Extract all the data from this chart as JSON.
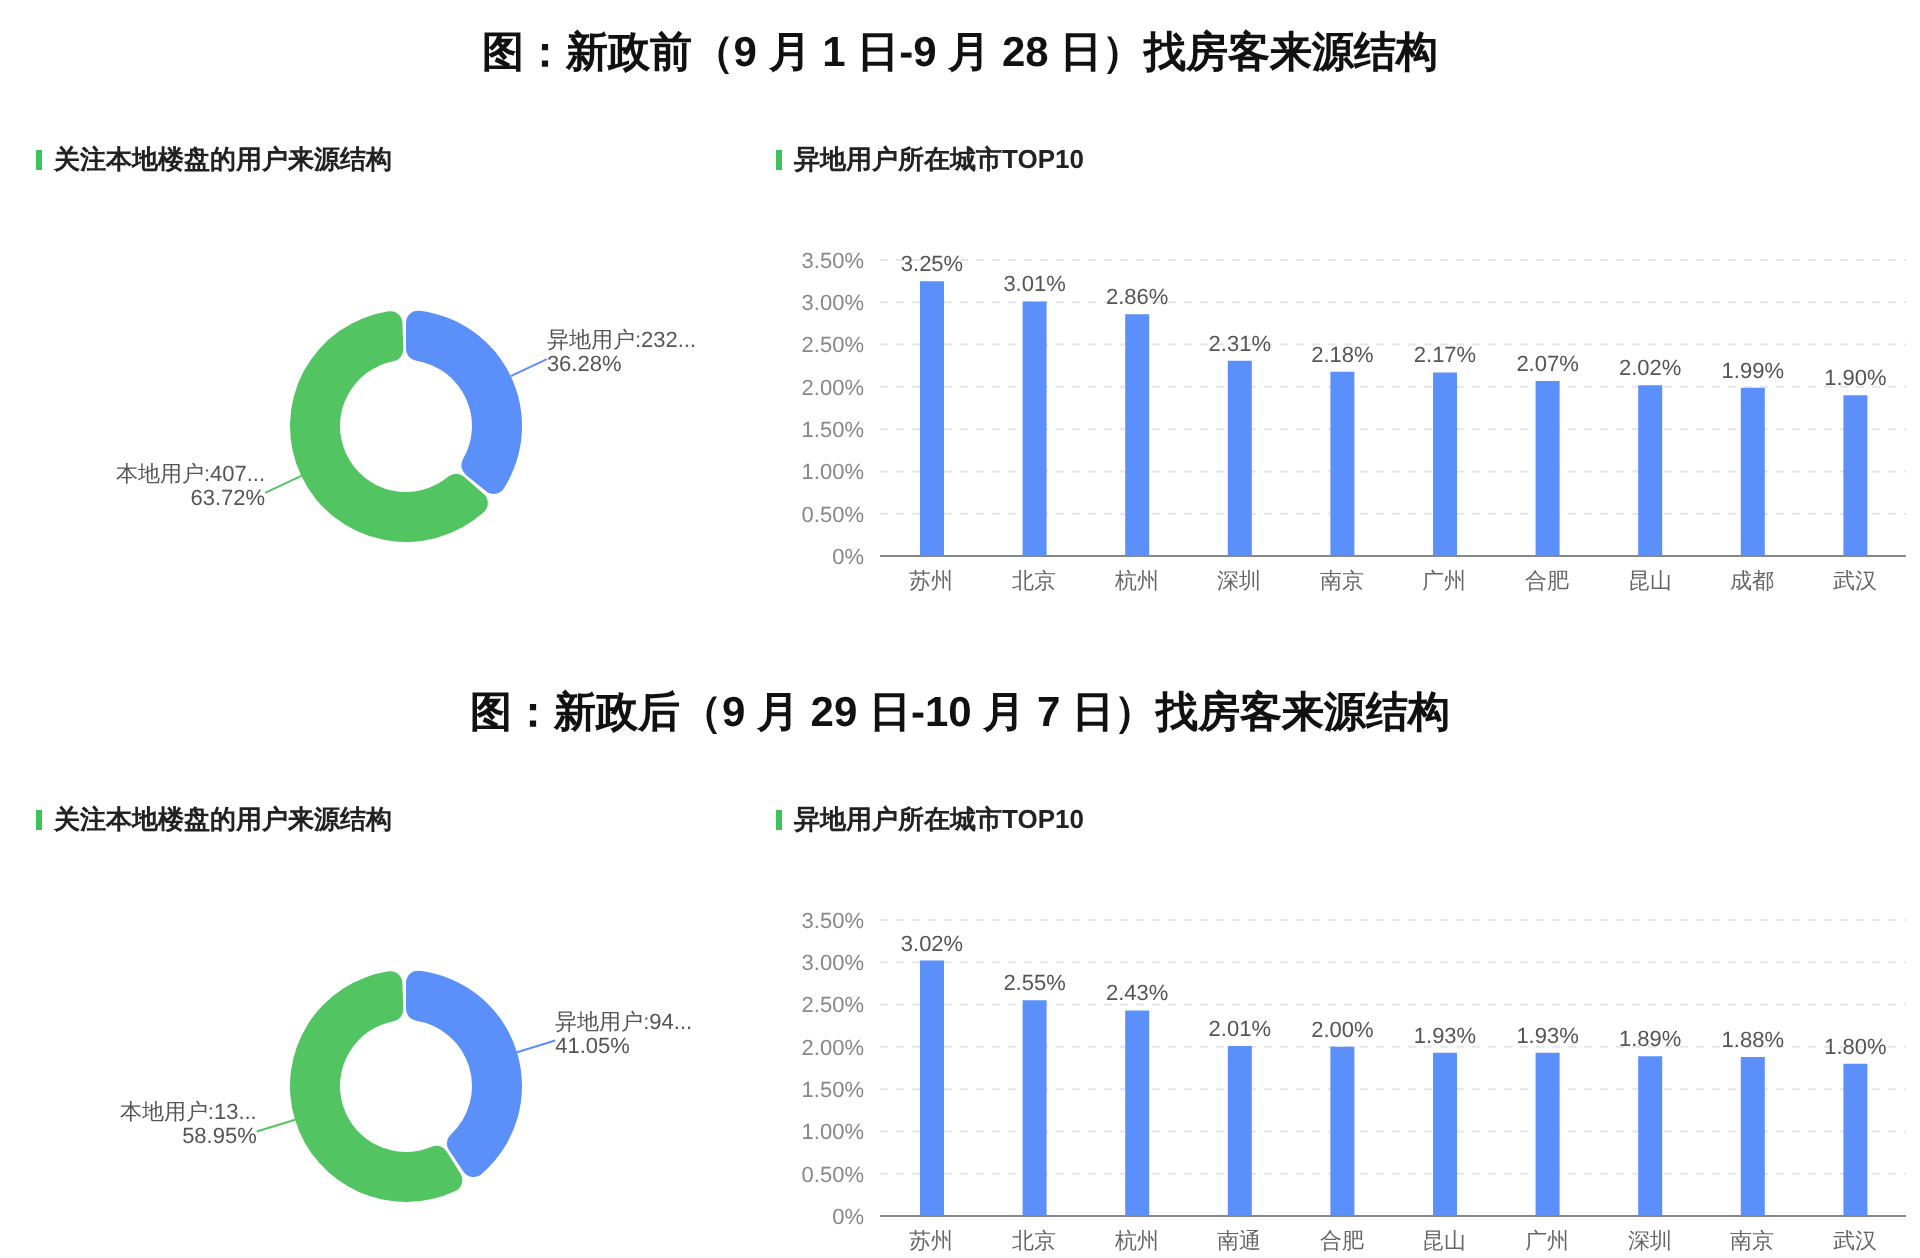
{
  "chart_data": [
    {
      "type": "donut",
      "subtitle": "关注本地楼盘的用户来源结构",
      "categories": [
        "异地用户:232...",
        "本地用户:407..."
      ],
      "values": [
        36.28,
        63.72
      ],
      "value_labels": [
        "36.28%",
        "63.72%"
      ],
      "colors": [
        "#5b8ff9",
        "#52c462"
      ]
    },
    {
      "type": "bar",
      "title": "图：新政前（9 月 1 日-9 月 28 日）找房客来源结构",
      "subtitle": "异地用户所在城市TOP10",
      "categories": [
        "苏州",
        "北京",
        "杭州",
        "深圳",
        "南京",
        "广州",
        "合肥",
        "昆山",
        "成都",
        "武汉"
      ],
      "values": [
        3.25,
        3.01,
        2.86,
        2.31,
        2.18,
        2.17,
        2.07,
        2.02,
        1.99,
        1.9
      ],
      "value_labels": [
        "3.25%",
        "3.01%",
        "2.86%",
        "2.31%",
        "2.18%",
        "2.17%",
        "2.07%",
        "2.02%",
        "1.99%",
        "1.90%"
      ],
      "color": "#5b8ff9",
      "ylim": [
        0,
        3.5
      ],
      "yticks": [
        {
          "value": 0,
          "label": "0%"
        },
        {
          "value": 0.5,
          "label": "0.50%"
        },
        {
          "value": 1,
          "label": "1.00%"
        },
        {
          "value": 1.5,
          "label": "1.50%"
        },
        {
          "value": 2,
          "label": "2.00%"
        },
        {
          "value": 2.5,
          "label": "2.50%"
        },
        {
          "value": 3,
          "label": "3.00%"
        },
        {
          "value": 3.5,
          "label": "3.50%"
        }
      ],
      "grid": "y"
    },
    {
      "type": "donut",
      "subtitle": "关注本地楼盘的用户来源结构",
      "categories": [
        "异地用户:94...",
        "本地用户:13..."
      ],
      "values": [
        41.05,
        58.95
      ],
      "value_labels": [
        "41.05%",
        "58.95%"
      ],
      "colors": [
        "#5b8ff9",
        "#52c462"
      ]
    },
    {
      "type": "bar",
      "title": "图：新政后（9 月 29 日-10 月 7 日）找房客来源结构",
      "subtitle": "异地用户所在城市TOP10",
      "categories": [
        "苏州",
        "北京",
        "杭州",
        "南通",
        "合肥",
        "昆山",
        "广州",
        "深圳",
        "南京",
        "武汉"
      ],
      "values": [
        3.02,
        2.55,
        2.43,
        2.01,
        2.0,
        1.93,
        1.93,
        1.89,
        1.88,
        1.8
      ],
      "value_labels": [
        "3.02%",
        "2.55%",
        "2.43%",
        "2.01%",
        "2.00%",
        "1.93%",
        "1.93%",
        "1.89%",
        "1.88%",
        "1.80%"
      ],
      "color": "#5b8ff9",
      "ylim": [
        0,
        3.5
      ],
      "yticks": [
        {
          "value": 0,
          "label": "0%"
        },
        {
          "value": 0.5,
          "label": "0.50%"
        },
        {
          "value": 1,
          "label": "1.00%"
        },
        {
          "value": 1.5,
          "label": "1.50%"
        },
        {
          "value": 2,
          "label": "2.00%"
        },
        {
          "value": 2.5,
          "label": "2.50%"
        },
        {
          "value": 3,
          "label": "3.00%"
        },
        {
          "value": 3.5,
          "label": "3.50%"
        }
      ],
      "grid": "y"
    }
  ]
}
